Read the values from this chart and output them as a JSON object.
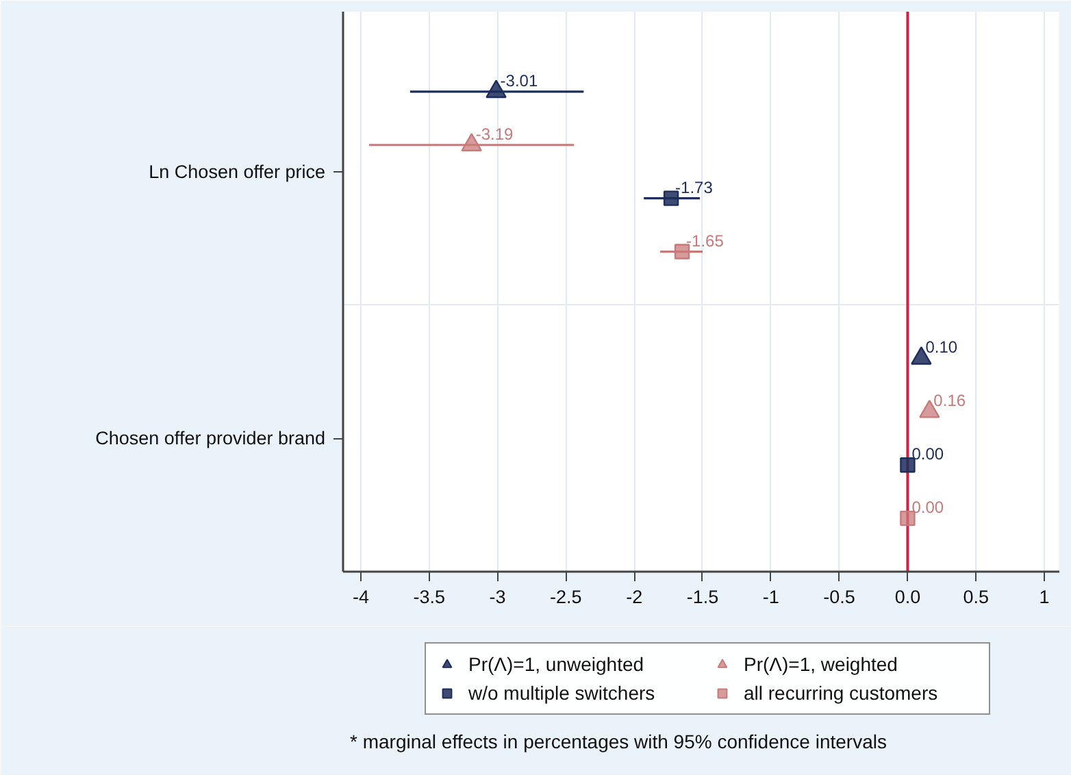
{
  "chart_data": {
    "type": "scatter",
    "orientation": "horizontal",
    "categories": [
      "Ln Chosen offer price",
      "Chosen offer provider brand"
    ],
    "series": [
      {
        "name": "Pr(Λ)=1, unweighted",
        "color": "#1c2d5a",
        "marker": "triangle",
        "values": [
          -3.01,
          0.1
        ],
        "errors": [
          [
            -3.64,
            -2.37
          ],
          null
        ],
        "value_labels": [
          "-3.01",
          "0.10"
        ]
      },
      {
        "name": "Pr(Λ)=1, weighted",
        "color": "#c87a7a",
        "marker": "triangle",
        "values": [
          -3.19,
          0.16
        ],
        "errors": [
          [
            -3.94,
            -2.44
          ],
          null
        ],
        "value_labels": [
          "-3.19",
          "0.16"
        ]
      },
      {
        "name": "w/o multiple switchers",
        "color": "#1c2d5a",
        "marker": "square",
        "values": [
          -1.73,
          0.0
        ],
        "errors": [
          [
            -1.93,
            -1.52
          ],
          null
        ],
        "value_labels": [
          "-1.73",
          "0.00"
        ]
      },
      {
        "name": "all recurring customers",
        "color": "#c87a7a",
        "marker": "square",
        "values": [
          -1.65,
          0.0
        ],
        "errors": [
          [
            -1.81,
            -1.5
          ],
          null
        ],
        "value_labels": [
          "-1.65",
          "0.00"
        ]
      }
    ],
    "xlim": [
      -4.13,
      1.11
    ],
    "xticks": [
      -4,
      -3.5,
      -3,
      -2.5,
      -2,
      -1.5,
      -1,
      -0.5,
      {
        "value": 0,
        "label": "0.0"
      },
      0.5,
      1
    ],
    "ref_lines": [
      {
        "axis": "x",
        "value": 0,
        "color": "#d81e45"
      }
    ],
    "grid": true,
    "legend": "bottom",
    "annotations": [
      "* marginal effects in percentages with 95% confidence intervals"
    ]
  }
}
